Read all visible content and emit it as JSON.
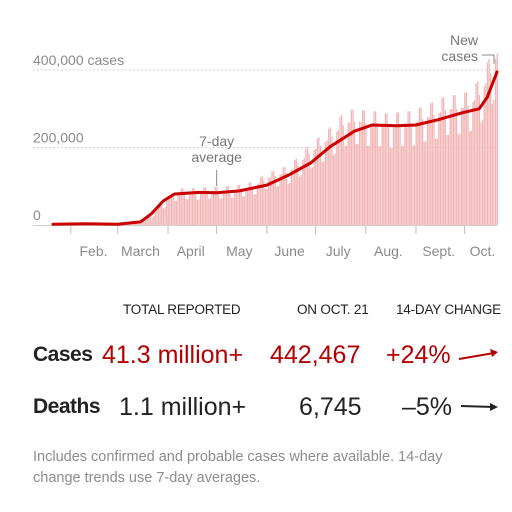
{
  "chart_data": {
    "type": "bar",
    "title": "",
    "xlabel": "",
    "ylabel": "",
    "ylim": [
      0,
      440000
    ],
    "y_ticks": [
      {
        "value": 0,
        "label": "0"
      },
      {
        "value": 200000,
        "label": "200,000"
      },
      {
        "value": 400000,
        "label": "400,000 cases"
      }
    ],
    "x_ticks": [
      "Feb.",
      "March",
      "April",
      "May",
      "June",
      "July",
      "Aug.",
      "Sept.",
      "Oct."
    ],
    "x_range": [
      "2020-01-21",
      "2020-10-21"
    ],
    "series": [
      {
        "name": "New cases",
        "kind": "bar",
        "color": "#f3b6b6",
        "values_monthly_weekly_samples": [
          [
            "2020-01-25",
            3000
          ],
          [
            "2020-02-10",
            4000
          ],
          [
            "2020-02-25",
            4500
          ],
          [
            "2020-03-05",
            3000
          ],
          [
            "2020-03-15",
            5000
          ],
          [
            "2020-03-22",
            25000
          ],
          [
            "2020-03-29",
            55000
          ],
          [
            "2020-04-05",
            80000
          ],
          [
            "2020-04-12",
            86000
          ],
          [
            "2020-04-19",
            84000
          ],
          [
            "2020-04-26",
            88000
          ],
          [
            "2020-05-03",
            88000
          ],
          [
            "2020-05-10",
            90000
          ],
          [
            "2020-05-17",
            94000
          ],
          [
            "2020-05-24",
            100000
          ],
          [
            "2020-05-31",
            118000
          ],
          [
            "2020-06-07",
            128000
          ],
          [
            "2020-06-14",
            136000
          ],
          [
            "2020-06-21",
            160000
          ],
          [
            "2020-06-28",
            188000
          ],
          [
            "2020-07-05",
            208000
          ],
          [
            "2020-07-12",
            232000
          ],
          [
            "2020-07-19",
            262000
          ],
          [
            "2020-07-26",
            268000
          ],
          [
            "2020-08-02",
            262000
          ],
          [
            "2020-08-09",
            262000
          ],
          [
            "2020-08-16",
            255000
          ],
          [
            "2020-08-23",
            262000
          ],
          [
            "2020-08-30",
            262000
          ],
          [
            "2020-09-06",
            275000
          ],
          [
            "2020-09-13",
            285000
          ],
          [
            "2020-09-20",
            298000
          ],
          [
            "2020-09-27",
            300000
          ],
          [
            "2020-10-04",
            308000
          ],
          [
            "2020-10-11",
            340000
          ],
          [
            "2020-10-18",
            400000
          ],
          [
            "2020-10-21",
            442467
          ]
        ]
      },
      {
        "name": "7-day average",
        "kind": "line",
        "color": "#cc0000",
        "points": [
          [
            "2020-01-21",
            2000
          ],
          [
            "2020-02-10",
            3000
          ],
          [
            "2020-03-01",
            2000
          ],
          [
            "2020-03-15",
            8000
          ],
          [
            "2020-03-22",
            30000
          ],
          [
            "2020-03-29",
            62000
          ],
          [
            "2020-04-05",
            80000
          ],
          [
            "2020-04-20",
            84000
          ],
          [
            "2020-05-01",
            83000
          ],
          [
            "2020-05-15",
            88000
          ],
          [
            "2020-06-01",
            103000
          ],
          [
            "2020-06-15",
            130000
          ],
          [
            "2020-06-28",
            160000
          ],
          [
            "2020-07-10",
            202000
          ],
          [
            "2020-07-25",
            242000
          ],
          [
            "2020-08-05",
            258000
          ],
          [
            "2020-08-20",
            256000
          ],
          [
            "2020-09-01",
            258000
          ],
          [
            "2020-09-15",
            272000
          ],
          [
            "2020-09-30",
            290000
          ],
          [
            "2020-10-10",
            300000
          ],
          [
            "2020-10-15",
            330000
          ],
          [
            "2020-10-21",
            395000
          ]
        ]
      }
    ],
    "annotations": [
      {
        "text_lines": [
          "7-day",
          "average"
        ],
        "target": "2020-05-01"
      },
      {
        "text_lines": [
          "New",
          "cases"
        ],
        "target": "2020-10-19"
      }
    ]
  },
  "table": {
    "headers": {
      "total": "TOTAL REPORTED",
      "on_date": "ON OCT. 21",
      "change": "14-DAY CHANGE"
    },
    "rows": [
      {
        "label": "Cases",
        "total": "41.3 million+",
        "on_date": "442,467",
        "change": "+24%",
        "trend": "up",
        "color": "#b40000"
      },
      {
        "label": "Deaths",
        "total": "1.1 million+",
        "on_date": "6,745",
        "change": "–5%",
        "trend": "flat",
        "color": "#222222"
      }
    ]
  },
  "note": "Includes confirmed and probable cases where available. 14-day change trends use 7-day averages."
}
